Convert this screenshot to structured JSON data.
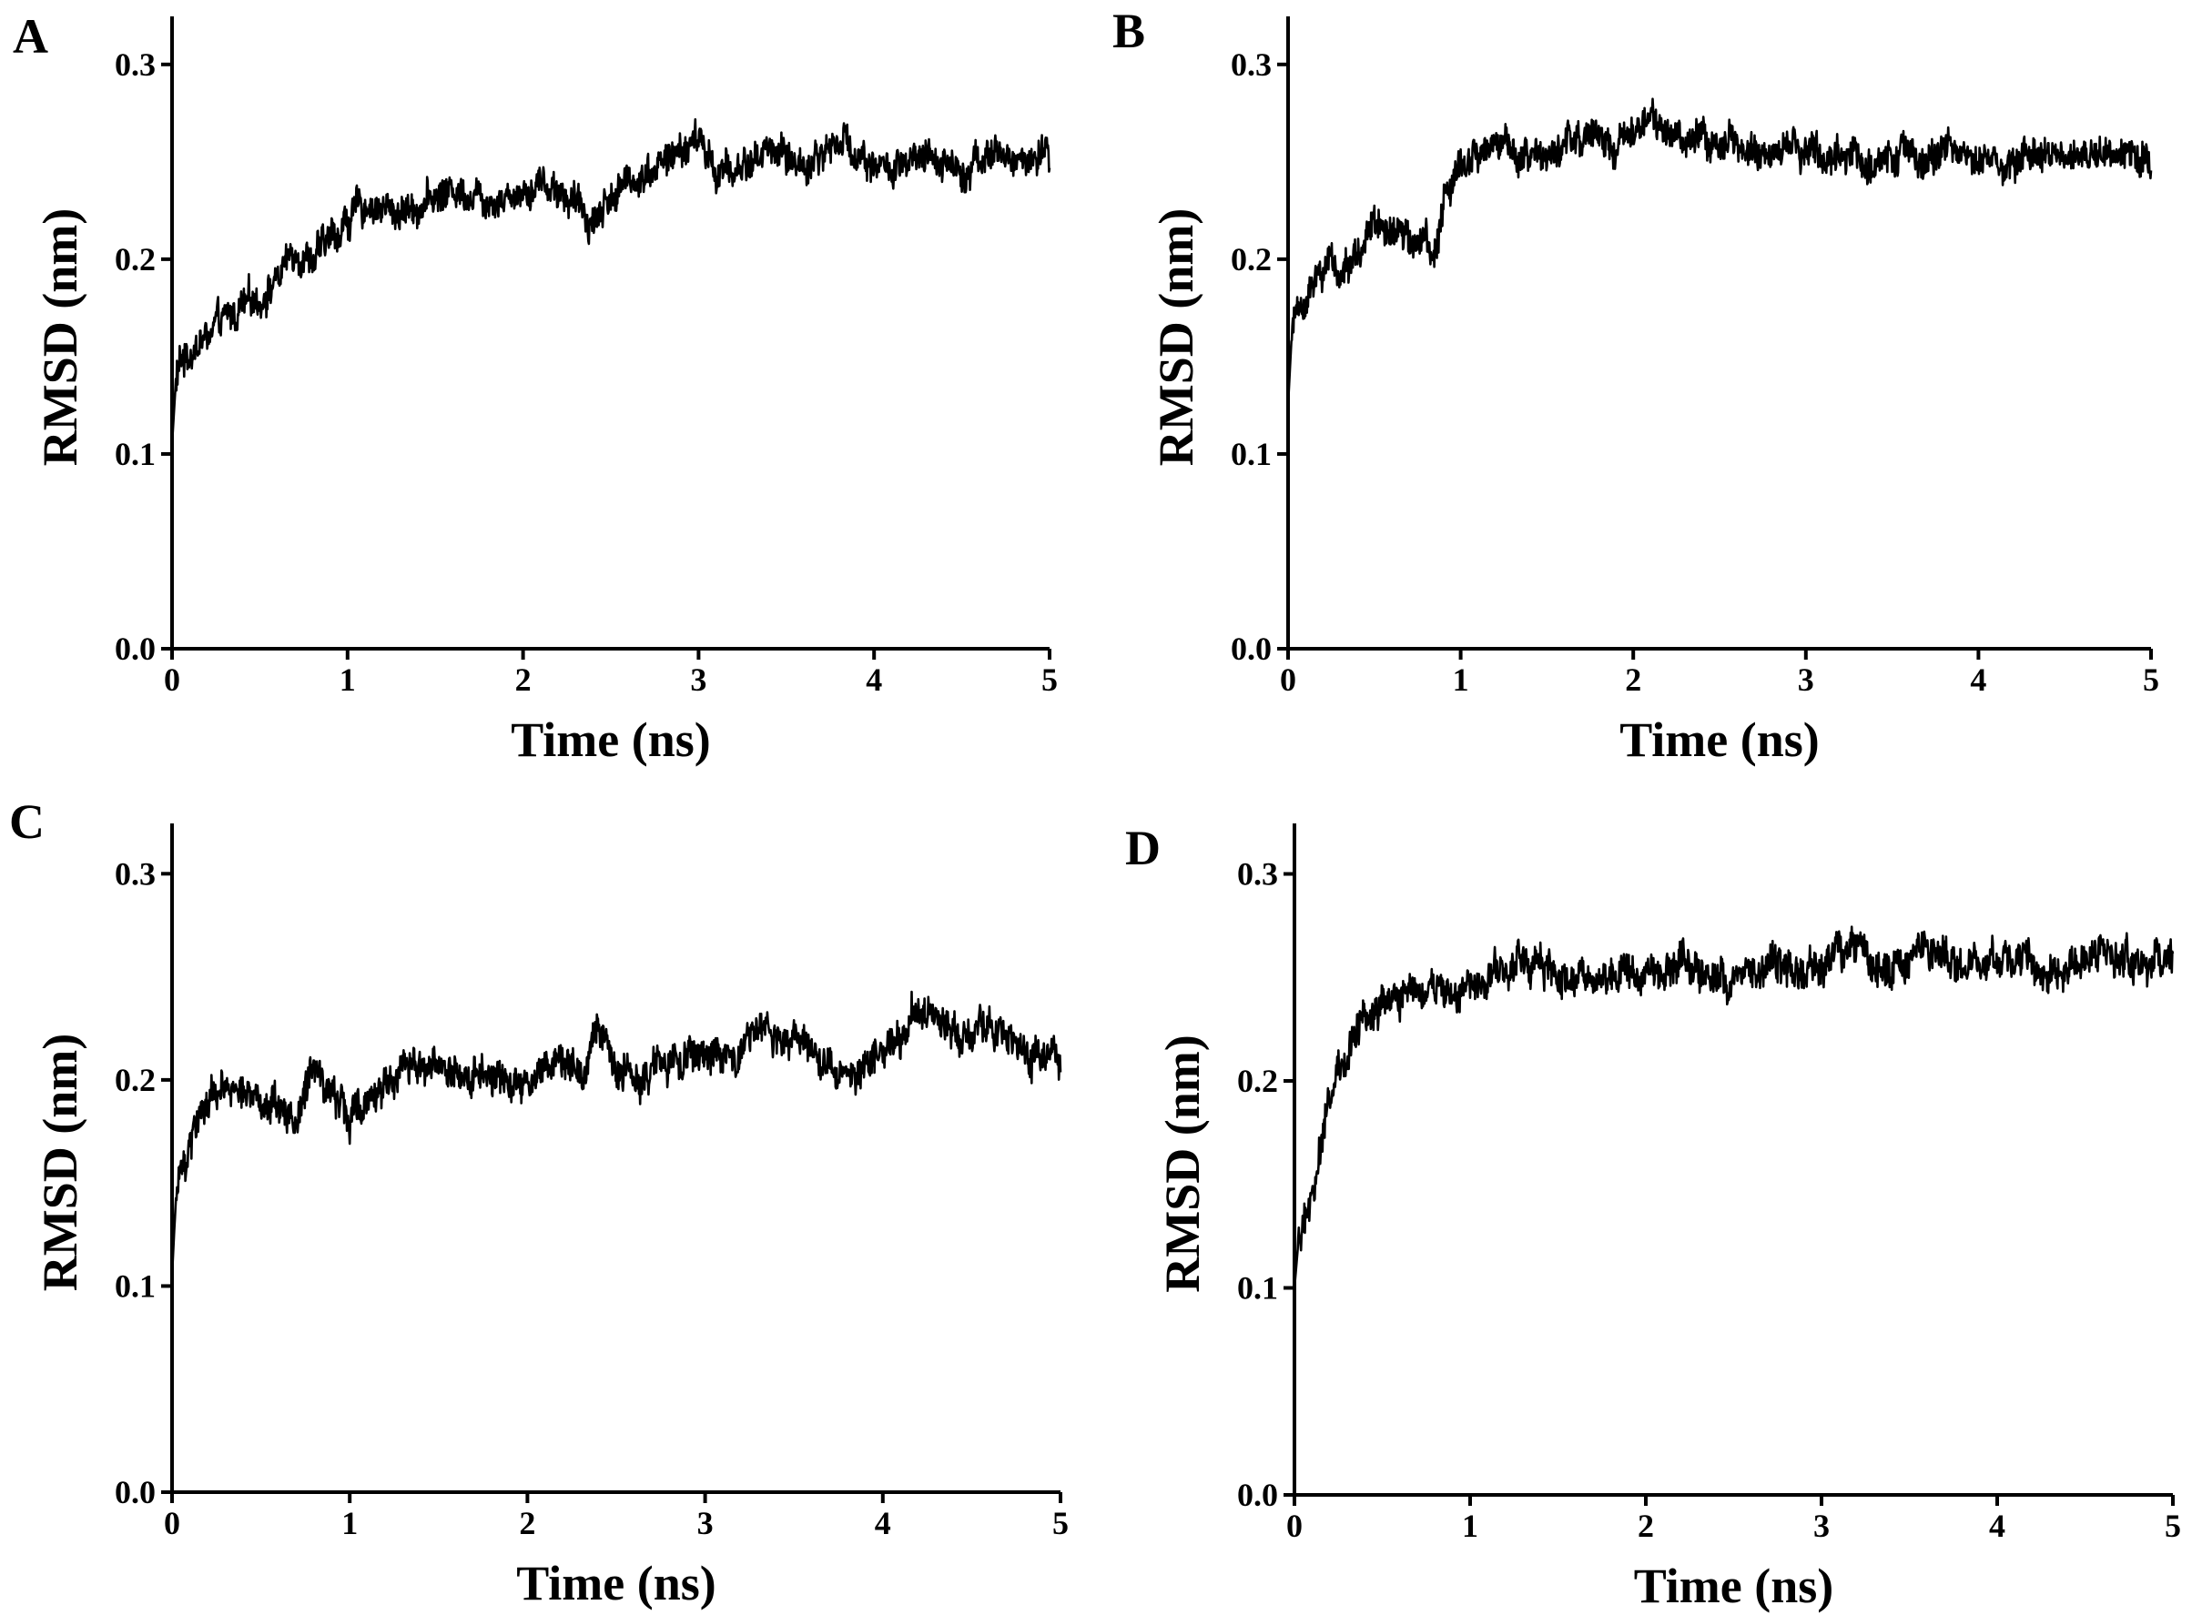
{
  "figure": {
    "line_color": "#000000",
    "background": "#ffffff"
  },
  "chart_data": [
    {
      "panel": "A",
      "type": "line",
      "xlabel": "Time (ns)",
      "ylabel": "RMSD (nm)",
      "xlim": [
        0,
        5
      ],
      "ylim": [
        0,
        0.32
      ],
      "xticks": [
        "0",
        "1",
        "2",
        "3",
        "4",
        "5"
      ],
      "yticks": [
        "0.0",
        "0.1",
        "0.2",
        "0.3"
      ],
      "grid": false,
      "x": [
        0,
        0.02,
        0.05,
        0.1,
        0.2,
        0.3,
        0.4,
        0.5,
        0.6,
        0.7,
        0.8,
        0.9,
        1.0,
        1.1,
        1.2,
        1.3,
        1.4,
        1.5,
        1.6,
        1.7,
        1.8,
        1.9,
        2.0,
        2.1,
        2.2,
        2.3,
        2.4,
        2.5,
        2.6,
        2.7,
        2.8,
        2.9,
        3.0,
        3.1,
        3.2,
        3.3,
        3.4,
        3.5,
        3.6,
        3.7,
        3.8,
        3.9,
        4.0,
        4.1,
        4.2,
        4.3,
        4.4,
        4.5,
        4.6,
        4.7,
        4.8,
        4.9,
        5.0
      ],
      "y": [
        0.105,
        0.135,
        0.148,
        0.152,
        0.16,
        0.168,
        0.175,
        0.18,
        0.19,
        0.205,
        0.2,
        0.21,
        0.22,
        0.228,
        0.226,
        0.224,
        0.228,
        0.232,
        0.236,
        0.235,
        0.232,
        0.232,
        0.236,
        0.24,
        0.236,
        0.228,
        0.22,
        0.232,
        0.24,
        0.245,
        0.25,
        0.255,
        0.262,
        0.245,
        0.245,
        0.25,
        0.258,
        0.252,
        0.248,
        0.254,
        0.262,
        0.255,
        0.25,
        0.245,
        0.248,
        0.25,
        0.252,
        0.246,
        0.252,
        0.254,
        0.25,
        0.252,
        0.25
      ]
    },
    {
      "panel": "B",
      "type": "line",
      "xlabel": "Time (ns)",
      "ylabel": "RMSD (nm)",
      "xlim": [
        0,
        5
      ],
      "ylim": [
        0,
        0.32
      ],
      "xticks": [
        "0",
        "1",
        "2",
        "3",
        "4",
        "5"
      ],
      "yticks": [
        "0.0",
        "0.1",
        "0.2",
        "0.3"
      ],
      "grid": false,
      "x": [
        0,
        0.02,
        0.05,
        0.1,
        0.2,
        0.3,
        0.4,
        0.5,
        0.6,
        0.7,
        0.8,
        0.85,
        0.9,
        1.0,
        1.1,
        1.2,
        1.3,
        1.4,
        1.5,
        1.6,
        1.7,
        1.8,
        1.9,
        2.0,
        2.1,
        2.2,
        2.3,
        2.4,
        2.5,
        2.6,
        2.7,
        2.8,
        2.9,
        3.0,
        3.1,
        3.2,
        3.3,
        3.4,
        3.5,
        3.6,
        3.7,
        3.8,
        3.9,
        4.0,
        4.1,
        4.2,
        4.3,
        4.4,
        4.5,
        4.6,
        4.7,
        4.8,
        4.9,
        5.0
      ],
      "y": [
        0.125,
        0.16,
        0.175,
        0.18,
        0.19,
        0.195,
        0.2,
        0.215,
        0.215,
        0.212,
        0.205,
        0.2,
        0.23,
        0.245,
        0.255,
        0.255,
        0.258,
        0.255,
        0.252,
        0.258,
        0.26,
        0.262,
        0.258,
        0.265,
        0.272,
        0.262,
        0.26,
        0.262,
        0.26,
        0.258,
        0.256,
        0.255,
        0.254,
        0.256,
        0.255,
        0.252,
        0.252,
        0.25,
        0.254,
        0.252,
        0.25,
        0.252,
        0.255,
        0.253,
        0.252,
        0.25,
        0.253,
        0.252,
        0.256,
        0.254,
        0.255,
        0.256,
        0.254,
        0.25
      ]
    },
    {
      "panel": "C",
      "type": "line",
      "xlabel": "Time (ns)",
      "ylabel": "RMSD (nm)",
      "xlim": [
        0,
        5
      ],
      "ylim": [
        0,
        0.32
      ],
      "xticks": [
        "0",
        "1",
        "2",
        "3",
        "4",
        "5"
      ],
      "yticks": [
        "0.0",
        "0.1",
        "0.2",
        "0.3"
      ],
      "grid": false,
      "x": [
        0,
        0.02,
        0.05,
        0.1,
        0.15,
        0.2,
        0.3,
        0.4,
        0.5,
        0.6,
        0.7,
        0.8,
        0.9,
        1.0,
        1.1,
        1.2,
        1.3,
        1.4,
        1.5,
        1.6,
        1.7,
        1.8,
        1.9,
        2.0,
        2.1,
        2.2,
        2.3,
        2.4,
        2.5,
        2.6,
        2.7,
        2.8,
        2.9,
        3.0,
        3.1,
        3.2,
        3.3,
        3.4,
        3.5,
        3.6,
        3.7,
        3.8,
        3.9,
        4.0,
        4.1,
        4.2,
        4.3,
        4.4,
        4.5,
        4.6,
        4.7,
        4.8,
        4.9,
        5.0
      ],
      "y": [
        0.105,
        0.14,
        0.155,
        0.165,
        0.18,
        0.19,
        0.192,
        0.195,
        0.19,
        0.188,
        0.182,
        0.212,
        0.192,
        0.185,
        0.19,
        0.2,
        0.205,
        0.2,
        0.21,
        0.2,
        0.202,
        0.205,
        0.19,
        0.2,
        0.205,
        0.21,
        0.208,
        0.225,
        0.205,
        0.202,
        0.205,
        0.208,
        0.205,
        0.21,
        0.212,
        0.215,
        0.225,
        0.228,
        0.22,
        0.215,
        0.21,
        0.198,
        0.205,
        0.212,
        0.222,
        0.232,
        0.228,
        0.222,
        0.22,
        0.225,
        0.222,
        0.215,
        0.212,
        0.208
      ]
    },
    {
      "panel": "D",
      "type": "line",
      "xlabel": "Time (ns)",
      "ylabel": "RMSD (nm)",
      "xlim": [
        0,
        5
      ],
      "ylim": [
        0,
        0.32
      ],
      "xticks": [
        "0",
        "1",
        "2",
        "3",
        "4",
        "5"
      ],
      "yticks": [
        "0.0",
        "0.1",
        "0.2",
        "0.3"
      ],
      "grid": false,
      "x": [
        0,
        0.02,
        0.05,
        0.1,
        0.15,
        0.2,
        0.25,
        0.3,
        0.35,
        0.4,
        0.5,
        0.6,
        0.7,
        0.8,
        0.9,
        1.0,
        1.1,
        1.2,
        1.3,
        1.4,
        1.5,
        1.6,
        1.7,
        1.8,
        1.9,
        2.0,
        2.1,
        2.2,
        2.3,
        2.4,
        2.5,
        2.6,
        2.7,
        2.8,
        2.9,
        3.0,
        3.1,
        3.2,
        3.3,
        3.4,
        3.5,
        3.6,
        3.7,
        3.8,
        3.9,
        4.0,
        4.1,
        4.2,
        4.3,
        4.4,
        4.5,
        4.6,
        4.7,
        4.8,
        4.9,
        5.0
      ],
      "y": [
        0.1,
        0.12,
        0.13,
        0.145,
        0.17,
        0.19,
        0.205,
        0.215,
        0.225,
        0.232,
        0.238,
        0.24,
        0.242,
        0.245,
        0.245,
        0.248,
        0.25,
        0.255,
        0.258,
        0.255,
        0.25,
        0.245,
        0.252,
        0.248,
        0.252,
        0.25,
        0.255,
        0.26,
        0.252,
        0.248,
        0.25,
        0.255,
        0.258,
        0.255,
        0.25,
        0.258,
        0.262,
        0.268,
        0.258,
        0.252,
        0.262,
        0.265,
        0.258,
        0.255,
        0.258,
        0.26,
        0.258,
        0.255,
        0.252,
        0.255,
        0.256,
        0.258,
        0.258,
        0.262,
        0.258,
        0.255
      ]
    }
  ]
}
